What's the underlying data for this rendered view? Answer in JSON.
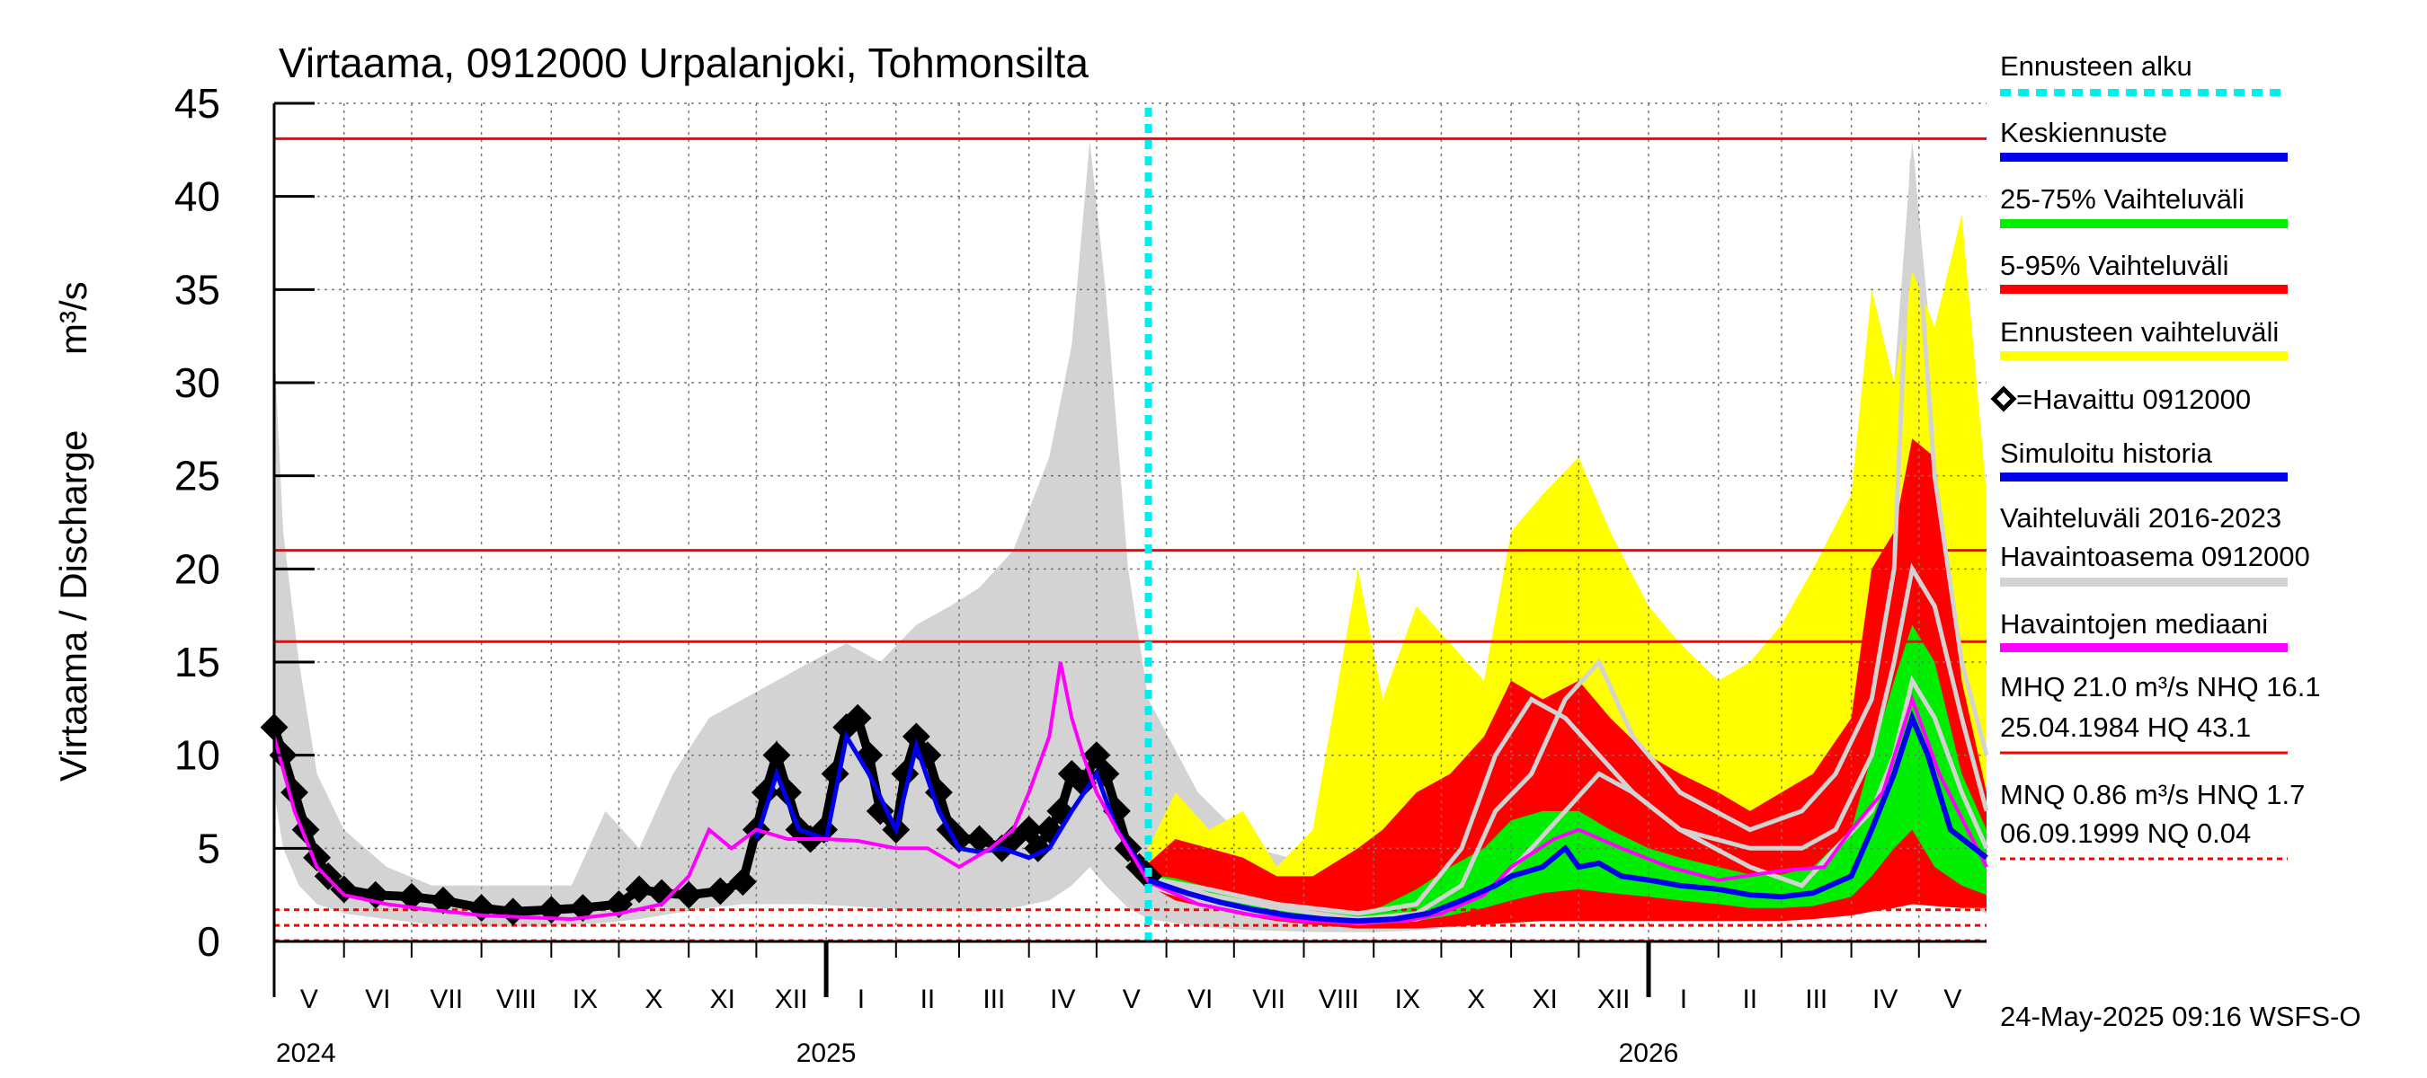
{
  "chart_data": {
    "type": "line",
    "title": "Virtaama, 0912000 Urpalanjoki, Tohmonsilta",
    "ylabel": "Virtaama / Discharge",
    "yunit": "m³/s",
    "ylim": [
      0,
      45
    ],
    "yticks": [
      "0",
      "5",
      "10",
      "15",
      "20",
      "25",
      "30",
      "35",
      "40",
      "45"
    ],
    "xlim": [
      "2024-05-01",
      "2026-05-31"
    ],
    "forecast_start": "2025-05-24",
    "months": [
      {
        "label": "V",
        "start": "2024-05-01"
      },
      {
        "label": "VI",
        "start": "2024-06-01"
      },
      {
        "label": "VII",
        "start": "2024-07-01"
      },
      {
        "label": "VIII",
        "start": "2024-08-01"
      },
      {
        "label": "IX",
        "start": "2024-09-01"
      },
      {
        "label": "X",
        "start": "2024-10-01"
      },
      {
        "label": "XI",
        "start": "2024-11-01"
      },
      {
        "label": "XII",
        "start": "2024-12-01"
      },
      {
        "label": "I",
        "start": "2025-01-01"
      },
      {
        "label": "II",
        "start": "2025-02-01"
      },
      {
        "label": "III",
        "start": "2025-03-01"
      },
      {
        "label": "IV",
        "start": "2025-04-01"
      },
      {
        "label": "V",
        "start": "2025-05-01"
      },
      {
        "label": "VI",
        "start": "2025-06-01"
      },
      {
        "label": "VII",
        "start": "2025-07-01"
      },
      {
        "label": "VIII",
        "start": "2025-08-01"
      },
      {
        "label": "IX",
        "start": "2025-09-01"
      },
      {
        "label": "X",
        "start": "2025-10-01"
      },
      {
        "label": "XI",
        "start": "2025-11-01"
      },
      {
        "label": "XII",
        "start": "2025-12-01"
      },
      {
        "label": "I",
        "start": "2026-01-01"
      },
      {
        "label": "II",
        "start": "2026-02-01"
      },
      {
        "label": "III",
        "start": "2026-03-01"
      },
      {
        "label": "IV",
        "start": "2026-04-01"
      },
      {
        "label": "V",
        "start": "2026-05-01"
      }
    ],
    "years": [
      {
        "label": "2024",
        "date": "2024-05-01"
      },
      {
        "label": "2025",
        "date": "2025-01-01"
      },
      {
        "label": "2026",
        "date": "2026-01-01"
      }
    ],
    "reference_lines": [
      {
        "value": 43.1,
        "style": "solid",
        "color": "#ff0000"
      },
      {
        "value": 21.0,
        "style": "solid",
        "color": "#ff0000"
      },
      {
        "value": 16.1,
        "style": "solid",
        "color": "#ff0000"
      },
      {
        "value": 1.7,
        "style": "dashed",
        "color": "#ff0000"
      },
      {
        "value": 0.86,
        "style": "dashed",
        "color": "#ff0000"
      },
      {
        "value": 0.04,
        "style": "dashed",
        "color": "#ff0000"
      }
    ],
    "history_band": {
      "name": "Vaihteluväli 2016-2023 Havaintoasema 0912000",
      "color": "#d3d3d3",
      "x": [
        "2024-05-01",
        "2024-05-05",
        "2024-05-12",
        "2024-05-20",
        "2024-06-01",
        "2024-06-20",
        "2024-07-10",
        "2024-07-30",
        "2024-08-20",
        "2024-09-10",
        "2024-09-25",
        "2024-10-10",
        "2024-10-25",
        "2024-11-10",
        "2024-11-25",
        "2024-12-10",
        "2024-12-25",
        "2025-01-10",
        "2025-01-25",
        "2025-02-10",
        "2025-02-25",
        "2025-03-10",
        "2025-03-25",
        "2025-04-10",
        "2025-04-20",
        "2025-04-28",
        "2025-05-05",
        "2025-05-15",
        "2025-05-24",
        "2025-06-15",
        "2025-07-10",
        "2025-08-10",
        "2025-09-01",
        "2025-09-20",
        "2025-10-10",
        "2025-10-25",
        "2025-11-10",
        "2025-11-25",
        "2025-12-10",
        "2025-12-25",
        "2026-01-10",
        "2026-02-10",
        "2026-03-10",
        "2026-03-25",
        "2026-04-10",
        "2026-04-20",
        "2026-04-28",
        "2026-05-08",
        "2026-05-20",
        "2026-05-31"
      ],
      "high": [
        32,
        22,
        15,
        9,
        6,
        4,
        3,
        3,
        3,
        3,
        7,
        5,
        9,
        12,
        13,
        14,
        15,
        16,
        15,
        17,
        18,
        19,
        21,
        26,
        32,
        43,
        35,
        20,
        13,
        8,
        5,
        4,
        8,
        10,
        9,
        12,
        13,
        14,
        12,
        9,
        7,
        6,
        8,
        12,
        18,
        30,
        43,
        30,
        18,
        10
      ],
      "low": [
        8,
        5,
        3,
        2,
        1.5,
        1.2,
        0.9,
        0.8,
        0.8,
        0.9,
        1.0,
        1.2,
        1.5,
        1.8,
        2.0,
        2.0,
        2.0,
        1.9,
        1.8,
        1.7,
        1.6,
        1.6,
        1.8,
        2.2,
        3.0,
        4.0,
        3.0,
        1.8,
        1.2,
        0.8,
        0.6,
        0.5,
        0.5,
        0.6,
        0.8,
        1.0,
        1.2,
        1.4,
        1.5,
        1.4,
        1.3,
        1.2,
        1.2,
        1.3,
        2.0,
        3.0,
        4.0,
        3.0,
        2.0,
        1.5
      ]
    },
    "forecast_bands": [
      {
        "name": "Ennusteen vaihteluväli",
        "color": "#ffff00",
        "x": [
          "2025-05-24",
          "2025-06-05",
          "2025-06-20",
          "2025-07-05",
          "2025-07-20",
          "2025-08-05",
          "2025-08-25",
          "2025-09-05",
          "2025-09-20",
          "2025-10-05",
          "2025-10-20",
          "2025-11-01",
          "2025-11-15",
          "2025-12-01",
          "2025-12-15",
          "2026-01-01",
          "2026-01-15",
          "2026-02-01",
          "2026-02-15",
          "2026-03-01",
          "2026-03-15",
          "2026-04-01",
          "2026-04-10",
          "2026-04-20",
          "2026-04-28",
          "2026-05-08",
          "2026-05-20",
          "2026-05-31"
        ],
        "high": [
          5,
          8,
          6,
          7,
          4,
          6,
          20,
          13,
          18,
          16,
          14,
          22,
          24,
          26,
          22,
          18,
          16,
          14,
          15,
          17,
          20,
          24,
          35,
          30,
          36,
          33,
          39,
          24
        ],
        "low": [
          3.2,
          2.5,
          2,
          1.6,
          1.3,
          1.1,
          0.8,
          0.8,
          0.8,
          0.9,
          1.0,
          1.0,
          1.1,
          1.2,
          1.2,
          1.2,
          1.2,
          1.2,
          1.2,
          1.2,
          1.3,
          1.5,
          1.8,
          2.0,
          2.2,
          2.0,
          1.8,
          1.8
        ]
      },
      {
        "name": "5-95% Vaihteluväli",
        "color": "#ff0000",
        "x": [
          "2025-05-24",
          "2025-06-05",
          "2025-06-20",
          "2025-07-05",
          "2025-07-20",
          "2025-08-05",
          "2025-08-25",
          "2025-09-05",
          "2025-09-20",
          "2025-10-05",
          "2025-10-20",
          "2025-11-01",
          "2025-11-15",
          "2025-12-01",
          "2025-12-15",
          "2026-01-01",
          "2026-01-15",
          "2026-02-01",
          "2026-02-15",
          "2026-03-01",
          "2026-03-15",
          "2026-04-01",
          "2026-04-10",
          "2026-04-20",
          "2026-04-28",
          "2026-05-08",
          "2026-05-20",
          "2026-05-31"
        ],
        "high": [
          4.2,
          5.5,
          5,
          4.5,
          3.5,
          3.5,
          5,
          6,
          8,
          9,
          11,
          14,
          13,
          14,
          12,
          10,
          9,
          8,
          7,
          8,
          9,
          12,
          20,
          22,
          27,
          26,
          14,
          8
        ],
        "low": [
          3.0,
          2.2,
          1.8,
          1.4,
          1.1,
          0.9,
          0.7,
          0.7,
          0.7,
          0.8,
          0.9,
          1.0,
          1.1,
          1.1,
          1.1,
          1.1,
          1.1,
          1.1,
          1.1,
          1.1,
          1.2,
          1.4,
          1.6,
          1.8,
          2.0,
          1.9,
          1.8,
          1.8
        ]
      },
      {
        "name": "25-75% Vaihteluväli",
        "color": "#00ee00",
        "x": [
          "2025-05-24",
          "2025-06-05",
          "2025-06-20",
          "2025-07-05",
          "2025-07-20",
          "2025-08-05",
          "2025-08-25",
          "2025-09-05",
          "2025-09-20",
          "2025-10-05",
          "2025-10-20",
          "2025-11-01",
          "2025-11-15",
          "2025-12-01",
          "2025-12-15",
          "2026-01-01",
          "2026-01-15",
          "2026-02-01",
          "2026-02-15",
          "2026-03-01",
          "2026-03-15",
          "2026-04-01",
          "2026-04-10",
          "2026-04-20",
          "2026-04-28",
          "2026-05-08",
          "2026-05-20",
          "2026-05-31"
        ],
        "high": [
          3.6,
          3.4,
          2.9,
          2.4,
          1.9,
          1.6,
          1.5,
          1.9,
          2.8,
          4.0,
          5.0,
          6.5,
          7.0,
          7.0,
          6.0,
          5.0,
          4.5,
          4.0,
          3.6,
          3.6,
          4.0,
          6.0,
          10,
          14,
          17,
          15,
          9,
          6
        ],
        "low": [
          3.2,
          2.6,
          2.1,
          1.7,
          1.4,
          1.2,
          1.0,
          1.0,
          1.1,
          1.4,
          1.8,
          2.2,
          2.6,
          2.8,
          2.6,
          2.4,
          2.2,
          2.0,
          1.8,
          1.8,
          1.9,
          2.4,
          3.5,
          5,
          6,
          4,
          3,
          2.5
        ]
      }
    ],
    "history_lines": {
      "color": "#d3d3d3",
      "x": [
        "2025-05-24",
        "2025-06-20",
        "2025-07-20",
        "2025-08-25",
        "2025-09-20",
        "2025-10-10",
        "2025-10-25",
        "2025-11-10",
        "2025-11-25",
        "2025-12-10",
        "2025-12-25",
        "2026-01-15",
        "2026-02-15",
        "2026-03-10",
        "2026-03-25",
        "2026-04-10",
        "2026-04-20",
        "2026-04-28",
        "2026-05-08",
        "2026-05-20",
        "2026-05-31"
      ],
      "series": [
        [
          3.5,
          2.5,
          1.8,
          1.2,
          1.5,
          3,
          7,
          9,
          13,
          15,
          11,
          8,
          6,
          7,
          9,
          13,
          20,
          42,
          25,
          15,
          10
        ],
        [
          3.0,
          2.0,
          1.4,
          1.0,
          1.2,
          2,
          3,
          5,
          7,
          9,
          8,
          6,
          4,
          3,
          5,
          7,
          10,
          14,
          12,
          8,
          5
        ],
        [
          3.4,
          2.8,
          2.0,
          1.5,
          2.0,
          5,
          10,
          13,
          12,
          10,
          8,
          6,
          5,
          5,
          6,
          10,
          15,
          20,
          18,
          12,
          7
        ]
      ]
    },
    "observed": {
      "name": "=Havaittu 0912000",
      "x": [
        "2024-05-01",
        "2024-05-05",
        "2024-05-10",
        "2024-05-15",
        "2024-05-20",
        "2024-05-25",
        "2024-06-01",
        "2024-06-15",
        "2024-07-01",
        "2024-07-15",
        "2024-08-01",
        "2024-08-15",
        "2024-09-01",
        "2024-09-15",
        "2024-10-01",
        "2024-10-10",
        "2024-10-20",
        "2024-11-01",
        "2024-11-15",
        "2024-11-25",
        "2024-12-01",
        "2024-12-05",
        "2024-12-10",
        "2024-12-15",
        "2024-12-20",
        "2024-12-25",
        "2024-12-31",
        "2025-01-05",
        "2025-01-10",
        "2025-01-15",
        "2025-01-20",
        "2025-01-25",
        "2025-02-01",
        "2025-02-05",
        "2025-02-10",
        "2025-02-15",
        "2025-02-20",
        "2025-02-25",
        "2025-03-01",
        "2025-03-10",
        "2025-03-20",
        "2025-03-25",
        "2025-04-01",
        "2025-04-05",
        "2025-04-10",
        "2025-04-15",
        "2025-04-20",
        "2025-04-25",
        "2025-05-01",
        "2025-05-05",
        "2025-05-10",
        "2025-05-15",
        "2025-05-20",
        "2025-05-24"
      ],
      "values": [
        11.5,
        10,
        8,
        6,
        4.5,
        3.5,
        2.8,
        2.5,
        2.4,
        2.2,
        1.8,
        1.6,
        1.7,
        1.8,
        2.0,
        2.8,
        2.6,
        2.5,
        2.7,
        3.2,
        6,
        8,
        10,
        8,
        6,
        5.5,
        6,
        9,
        11.5,
        12,
        10,
        7,
        6,
        9,
        11,
        10,
        8,
        6,
        5.5,
        5.5,
        5,
        5.5,
        6,
        5,
        6,
        7,
        9,
        8.5,
        10,
        9,
        7,
        5,
        4,
        3.5
      ]
    },
    "simulated_history": {
      "name": "Simuloitu historia",
      "x": [
        "2024-12-01",
        "2024-12-10",
        "2024-12-20",
        "2025-01-01",
        "2025-01-10",
        "2025-01-20",
        "2025-02-01",
        "2025-02-10",
        "2025-02-20",
        "2025-03-01",
        "2025-03-10",
        "2025-03-20",
        "2025-04-01",
        "2025-04-10",
        "2025-04-20",
        "2025-05-01",
        "2025-05-10",
        "2025-05-24"
      ],
      "values": [
        5.5,
        9,
        6,
        5.5,
        11,
        9,
        6,
        10.5,
        7,
        5,
        4.8,
        5,
        4.5,
        5,
        7,
        9,
        6,
        3.5
      ]
    },
    "median": {
      "name": "Havaintojen mediaani",
      "x": [
        "2024-05-01",
        "2024-05-10",
        "2024-05-20",
        "2024-06-01",
        "2024-06-20",
        "2024-07-10",
        "2024-08-01",
        "2024-08-20",
        "2024-09-10",
        "2024-10-01",
        "2024-10-20",
        "2024-11-01",
        "2024-11-10",
        "2024-11-20",
        "2024-12-01",
        "2024-12-15",
        "2025-01-01",
        "2025-01-15",
        "2025-02-01",
        "2025-02-15",
        "2025-03-01",
        "2025-03-15",
        "2025-03-25",
        "2025-04-01",
        "2025-04-10",
        "2025-04-15",
        "2025-04-20",
        "2025-04-25",
        "2025-05-01",
        "2025-05-10",
        "2025-05-24",
        "2025-06-15",
        "2025-07-10",
        "2025-08-01",
        "2025-08-25",
        "2025-09-15",
        "2025-10-01",
        "2025-10-20",
        "2025-11-01",
        "2025-11-20",
        "2025-12-01",
        "2025-12-20",
        "2026-01-10",
        "2026-02-01",
        "2026-03-01",
        "2026-03-20",
        "2026-04-01",
        "2026-04-15",
        "2026-04-28",
        "2026-05-10",
        "2026-05-31"
      ],
      "values": [
        11,
        7,
        4,
        2.5,
        2,
        1.7,
        1.4,
        1.3,
        1.2,
        1.5,
        2,
        3.5,
        6,
        5,
        6,
        5.5,
        5.5,
        5.4,
        5,
        5,
        4,
        5,
        6,
        8,
        11,
        15,
        12,
        10,
        8,
        6,
        3.2,
        2,
        1.4,
        1.1,
        1.0,
        1.1,
        1.5,
        2.5,
        4,
        5.5,
        6,
        5,
        4,
        3.3,
        3.8,
        4,
        6,
        8,
        13,
        9,
        4
      ]
    },
    "mean_forecast": {
      "name": "Keskiennuste",
      "x": [
        "2025-05-24",
        "2025-06-10",
        "2025-06-25",
        "2025-07-10",
        "2025-07-25",
        "2025-08-10",
        "2025-08-25",
        "2025-09-10",
        "2025-09-25",
        "2025-10-10",
        "2025-10-25",
        "2025-11-01",
        "2025-11-15",
        "2025-11-25",
        "2025-12-01",
        "2025-12-10",
        "2025-12-20",
        "2026-01-01",
        "2026-01-15",
        "2026-02-01",
        "2026-02-15",
        "2026-03-01",
        "2026-03-15",
        "2026-04-01",
        "2026-04-10",
        "2026-04-20",
        "2026-04-28",
        "2026-05-05",
        "2026-05-15",
        "2026-05-31"
      ],
      "values": [
        3.3,
        2.6,
        2.1,
        1.7,
        1.4,
        1.2,
        1.1,
        1.2,
        1.5,
        2.2,
        3.0,
        3.5,
        4.0,
        5.0,
        4.0,
        4.2,
        3.5,
        3.3,
        3.0,
        2.8,
        2.5,
        2.4,
        2.6,
        3.5,
        6,
        9,
        12,
        10,
        6,
        4.5
      ]
    },
    "legend": [
      {
        "label": "Ennusteen alku",
        "color": "#00eeee",
        "style": "dotted"
      },
      {
        "label": "Keskiennuste",
        "color": "#0000ee",
        "style": "solid"
      },
      {
        "label": "25-75% Vaihteluväli",
        "color": "#00ee00",
        "style": "solid"
      },
      {
        "label": "5-95% Vaihteluväli",
        "color": "#ff0000",
        "style": "solid"
      },
      {
        "label": "Ennusteen vaihteluväli",
        "color": "#ffff00",
        "style": "solid"
      },
      {
        "label": "=Havaittu 0912000",
        "color": "#000000",
        "style": "marker"
      },
      {
        "label": "Simuloitu historia",
        "color": "#0000ee",
        "style": "solid"
      },
      {
        "label": "Vaihteluväli 2016-2023",
        "label2": " Havaintoasema 0912000",
        "color": "#d3d3d3",
        "style": "solid"
      },
      {
        "label": "Havaintojen mediaani",
        "color": "#ff00ff",
        "style": "solid"
      },
      {
        "label": "MHQ 21.0 m³/s NHQ 16.1",
        "label2": "25.04.1984 HQ 43.1",
        "color": "#ff0000",
        "style": "thin"
      },
      {
        "label": "MNQ 0.86 m³/s HNQ  1.7",
        "label2": "06.09.1999 NQ 0.04",
        "color": "#ff0000",
        "style": "dashed"
      }
    ],
    "footer": "24-May-2025 09:16 WSFS-O"
  }
}
